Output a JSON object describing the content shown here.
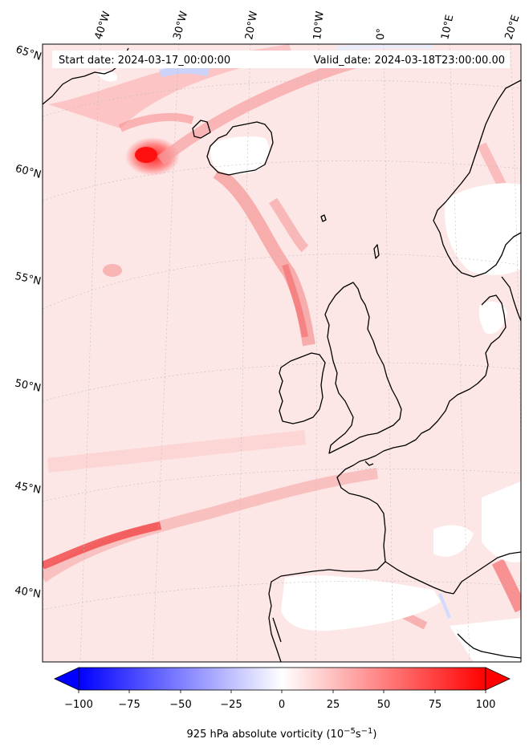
{
  "header": {
    "start_date": "Start date: 2024-03-17_00:00:00",
    "valid_date": "Valid_date: 2024-03-18T23:00:00.00"
  },
  "longitude_labels": [
    "40°W",
    "30°W",
    "20°W",
    "10°W",
    "0°",
    "10°E",
    "20°E"
  ],
  "latitude_labels": [
    "65°N",
    "60°N",
    "55°N",
    "50°N",
    "45°N",
    "40°N"
  ],
  "colorbar": {
    "ticks": [
      "−100",
      "−75",
      "−50",
      "−25",
      "0",
      "25",
      "50",
      "75",
      "100"
    ],
    "title_main": "925 hPa absolute vorticity (10",
    "title_exp1": "−5",
    "title_mid": "s",
    "title_exp2": "−1",
    "title_end": ")",
    "colormap": "bwr",
    "range": [
      -100,
      100
    ],
    "extend": "both"
  },
  "colors": {
    "land_blank": "#ffffff",
    "ocean_base": "#fde6e6",
    "coastline": "#000000",
    "graticule": "#b0b0b0",
    "max_red": "#ff0000",
    "min_blue": "#0000ff"
  }
}
